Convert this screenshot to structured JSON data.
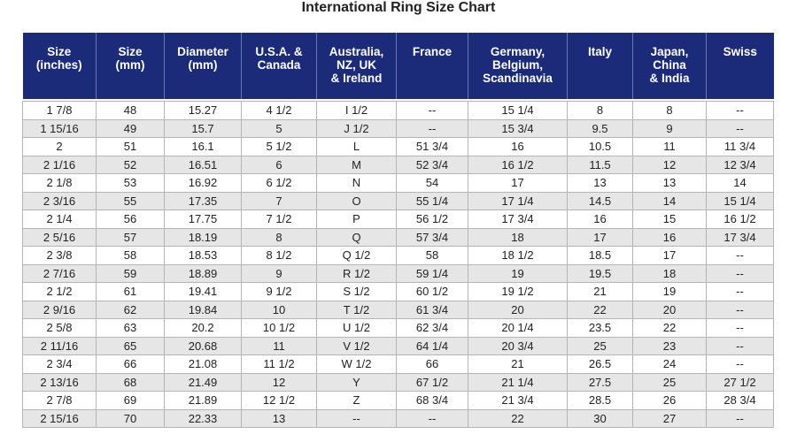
{
  "title": "International Ring Size Chart",
  "table": {
    "header": [
      "Size\n(inches)",
      "Size\n(mm)",
      "Diameter\n(mm)",
      "U.S.A. &\nCanada",
      "Australia,\nNZ, UK\n& Ireland",
      "France",
      "Germany,\nBelgium,\nScandinavia",
      "Italy",
      "Japan,\nChina\n& India",
      "Swiss"
    ],
    "rows": [
      [
        "1 7/8",
        "48",
        "15.27",
        "4 1/2",
        "I 1/2",
        "--",
        "15 1/4",
        "8",
        "8",
        "--"
      ],
      [
        "1 15/16",
        "49",
        "15.7",
        "5",
        "J 1/2",
        "--",
        "15 3/4",
        "9.5",
        "9",
        "--"
      ],
      [
        "2",
        "51",
        "16.1",
        "5 1/2",
        "L",
        "51 3/4",
        "16",
        "10.5",
        "11",
        "11 3/4"
      ],
      [
        "2 1/16",
        "52",
        "16.51",
        "6",
        "M",
        "52 3/4",
        "16 1/2",
        "11.5",
        "12",
        "12 3/4"
      ],
      [
        "2 1/8",
        "53",
        "16.92",
        "6 1/2",
        "N",
        "54",
        "17",
        "13",
        "13",
        "14"
      ],
      [
        "2 3/16",
        "55",
        "17.35",
        "7",
        "O",
        "55 1/4",
        "17 1/4",
        "14.5",
        "14",
        "15 1/4"
      ],
      [
        "2 1/4",
        "56",
        "17.75",
        "7 1/2",
        "P",
        "56 1/2",
        "17 3/4",
        "16",
        "15",
        "16 1/2"
      ],
      [
        "2 5/16",
        "57",
        "18.19",
        "8",
        "Q",
        "57 3/4",
        "18",
        "17",
        "16",
        "17 3/4"
      ],
      [
        "2 3/8",
        "58",
        "18.53",
        "8 1/2",
        "Q 1/2",
        "58",
        "18 1/2",
        "18.5",
        "17",
        "--"
      ],
      [
        "2 7/16",
        "59",
        "18.89",
        "9",
        "R 1/2",
        "59 1/4",
        "19",
        "19.5",
        "18",
        "--"
      ],
      [
        "2 1/2",
        "61",
        "19.41",
        "9 1/2",
        "S 1/2",
        "60 1/2",
        "19 1/2",
        "21",
        "19",
        "--"
      ],
      [
        "2 9/16",
        "62",
        "19.84",
        "10",
        "T 1/2",
        "61 3/4",
        "20",
        "22",
        "20",
        "--"
      ],
      [
        "2 5/8",
        "63",
        "20.2",
        "10 1/2",
        "U 1/2",
        "62 3/4",
        "20 1/4",
        "23.5",
        "22",
        "--"
      ],
      [
        "2 11/16",
        "65",
        "20.68",
        "11",
        "V 1/2",
        "64 1/4",
        "20 3/4",
        "25",
        "23",
        "--"
      ],
      [
        "2 3/4",
        "66",
        "21.08",
        "11 1/2",
        "W 1/2",
        "66",
        "21",
        "26.5",
        "24",
        "--"
      ],
      [
        "2 13/16",
        "68",
        "21.49",
        "12",
        "Y",
        "67 1/2",
        "21 1/4",
        "27.5",
        "25",
        "27 1/2"
      ],
      [
        "2 7/8",
        "69",
        "21.89",
        "12 1/2",
        "Z",
        "68 3/4",
        "21 3/4",
        "28.5",
        "26",
        "28 3/4"
      ],
      [
        "2 15/16",
        "70",
        "22.33",
        "13",
        "--",
        "--",
        "22",
        "30",
        "27",
        "--"
      ]
    ]
  }
}
